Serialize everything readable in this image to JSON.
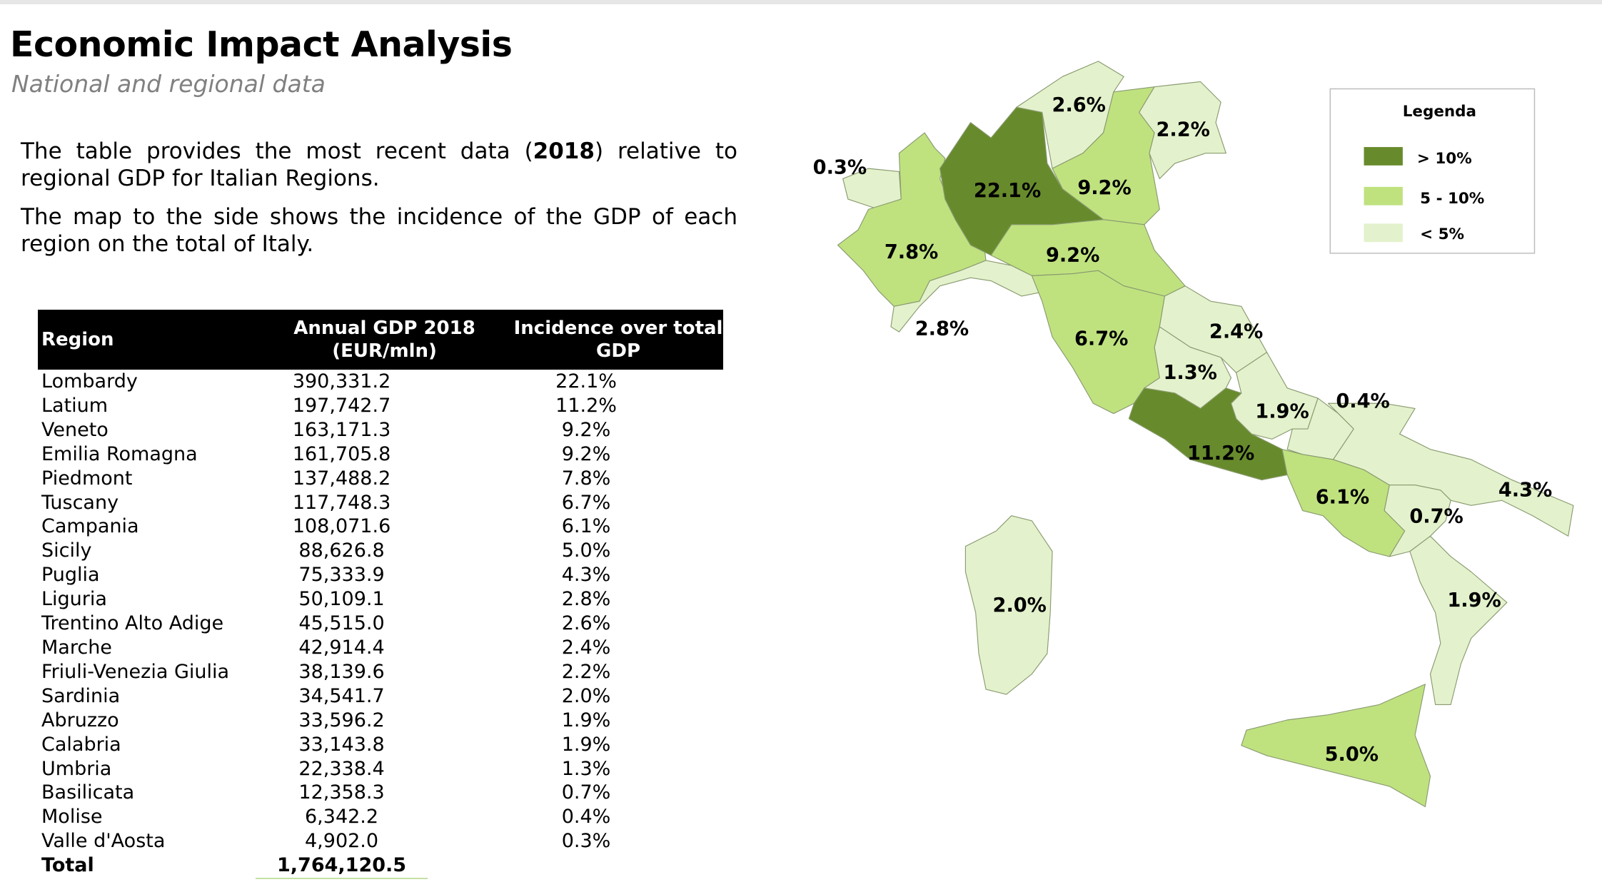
{
  "header": {
    "title": "Economic Impact Analysis",
    "subtitle": "National and regional data"
  },
  "intro": {
    "p1_before": "The table provides the most recent data (",
    "p1_bold": "2018",
    "p1_after": ") relative to regional GDP for Italian Regions.",
    "p2": "The map to the side shows the incidence of the GDP of each region on the total of Italy."
  },
  "table": {
    "headers": [
      "Region",
      "Annual GDP 2018",
      "(EUR/mln)",
      "Incidence over total GDP"
    ],
    "rows": [
      {
        "region": "Lombardy",
        "gdp": "390,331.2",
        "share": "22.1%"
      },
      {
        "region": "Latium",
        "gdp": "197,742.7",
        "share": "11.2%"
      },
      {
        "region": "Veneto",
        "gdp": "163,171.3",
        "share": "9.2%"
      },
      {
        "region": "Emilia Romagna",
        "gdp": "161,705.8",
        "share": "9.2%"
      },
      {
        "region": "Piedmont",
        "gdp": "137,488.2",
        "share": "7.8%"
      },
      {
        "region": "Tuscany",
        "gdp": "117,748.3",
        "share": "6.7%"
      },
      {
        "region": "Campania",
        "gdp": "108,071.6",
        "share": "6.1%"
      },
      {
        "region": "Sicily",
        "gdp": "88,626.8",
        "share": "5.0%"
      },
      {
        "region": "Puglia",
        "gdp": "75,333.9",
        "share": "4.3%"
      },
      {
        "region": "Liguria",
        "gdp": "50,109.1",
        "share": "2.8%"
      },
      {
        "region": "Trentino Alto Adige",
        "gdp": "45,515.0",
        "share": "2.6%"
      },
      {
        "region": "Marche",
        "gdp": "42,914.4",
        "share": "2.4%"
      },
      {
        "region": "Friuli-Venezia Giulia",
        "gdp": "38,139.6",
        "share": "2.2%"
      },
      {
        "region": "Sardinia",
        "gdp": "34,541.7",
        "share": "2.0%"
      },
      {
        "region": "Abruzzo",
        "gdp": "33,596.2",
        "share": "1.9%"
      },
      {
        "region": "Calabria",
        "gdp": "33,143.8",
        "share": "1.9%"
      },
      {
        "region": "Umbria",
        "gdp": "22,338.4",
        "share": "1.3%"
      },
      {
        "region": "Basilicata",
        "gdp": "12,358.3",
        "share": "0.7%"
      },
      {
        "region": "Molise",
        "gdp": "6,342.2",
        "share": "0.4%"
      },
      {
        "region": "Valle d'Aosta",
        "gdp": "4,902.0",
        "share": "0.3%"
      }
    ],
    "total": {
      "label": "Total",
      "gdp": "1,764,120.5"
    }
  },
  "map": {
    "colors": {
      "high": "#678b2c",
      "mid": "#bfe27f",
      "low": "#e3f2cc",
      "border": "#8a9a70"
    },
    "legend": {
      "title": "Legenda",
      "items": [
        {
          "label": "> 10%",
          "color": "#678b2c"
        },
        {
          "label": "5 - 10%",
          "color": "#bfe27f"
        },
        {
          "label": "< 5%",
          "color": "#e3f2cc"
        }
      ]
    },
    "labels": {
      "valle_daosta": "0.3%",
      "piedmont": "7.8%",
      "lombardy": "22.1%",
      "trentino": "2.6%",
      "veneto": "9.2%",
      "friuli": "2.2%",
      "emilia": "9.2%",
      "liguria": "2.8%",
      "tuscany": "6.7%",
      "marche": "2.4%",
      "umbria": "1.3%",
      "abruzzo": "1.9%",
      "lazio": "11.2%",
      "molise": "0.4%",
      "campania": "6.1%",
      "puglia": "4.3%",
      "basilicata": "0.7%",
      "calabria": "1.9%",
      "sicily": "5.0%",
      "sardinia": "2.0%"
    }
  }
}
